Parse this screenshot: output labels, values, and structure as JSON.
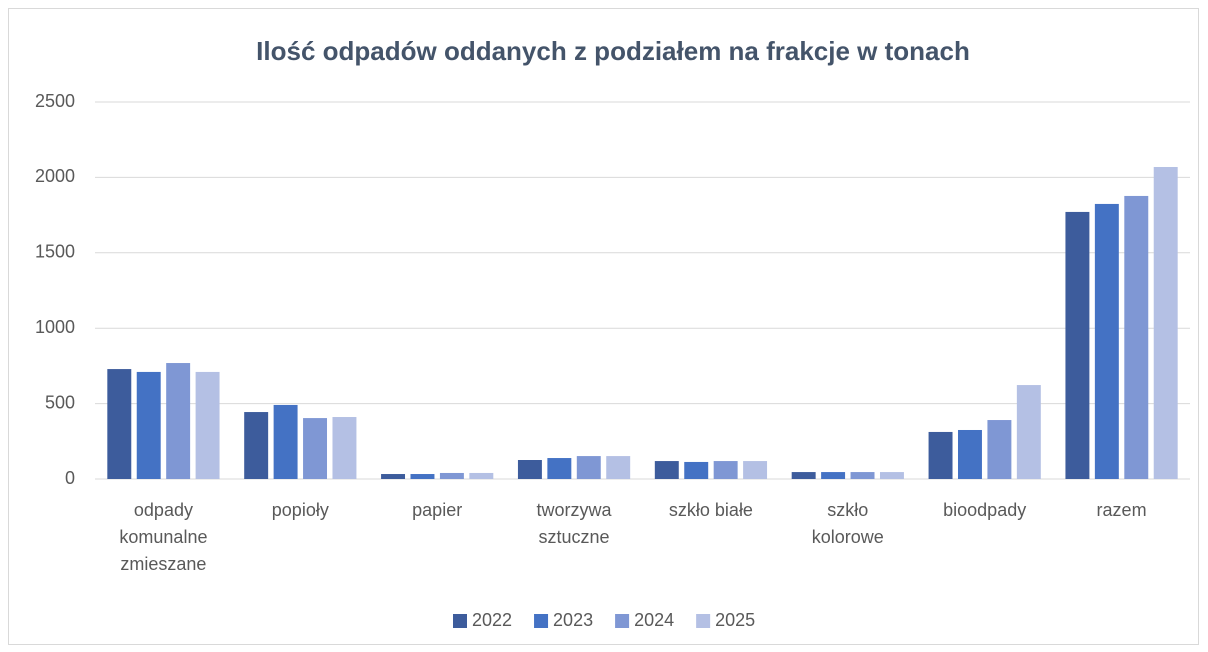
{
  "chart_data": {
    "type": "bar",
    "title": "Ilość odpadów oddanych z podziałem na frakcje w tonach",
    "categories": [
      "odpady komunalne zmieszane",
      "popioły",
      "papier",
      "tworzywa sztuczne",
      "szkło białe",
      "szkło kolorowe",
      "bioodpady",
      "razem"
    ],
    "series": [
      {
        "name": "2022",
        "color": "#3d5c9c",
        "values": [
          729,
          444,
          33,
          126,
          119,
          46,
          312,
          1771
        ]
      },
      {
        "name": "2023",
        "color": "#4472c4",
        "values": [
          710,
          491,
          33,
          139,
          113,
          46,
          325,
          1824
        ]
      },
      {
        "name": "2024",
        "color": "#7f97d4",
        "values": [
          769,
          404,
          40,
          152,
          119,
          46,
          391,
          1877
        ]
      },
      {
        "name": "2025",
        "color": "#b4c0e4",
        "values": [
          710,
          411,
          40,
          152,
          119,
          46,
          623,
          2069
        ]
      }
    ],
    "ylim": [
      0,
      2500
    ],
    "yticks": [
      0,
      500,
      1000,
      1500,
      2000,
      2500
    ],
    "grid": true,
    "legend": "bottom"
  }
}
